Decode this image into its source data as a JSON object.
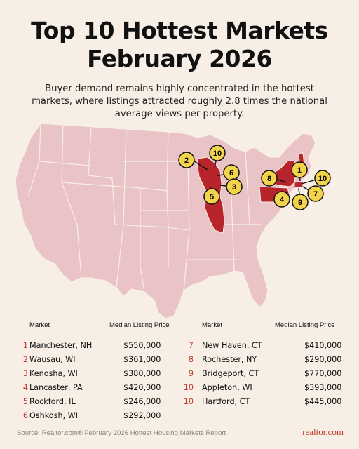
{
  "header": {
    "title_line1": "Top 10 Hottest Markets",
    "title_line2": "February 2026",
    "subtitle": "Buyer demand remains highly concentrated in the hottest markets, where listings attracted roughly 2.8 times the national average views per property."
  },
  "map": {
    "highlight_color": "#b8242c",
    "base_color": "#e9c3c5",
    "marker_color": "#f3d34a",
    "markers": [
      {
        "rank": "1"
      },
      {
        "rank": "2"
      },
      {
        "rank": "3"
      },
      {
        "rank": "4"
      },
      {
        "rank": "5"
      },
      {
        "rank": "6"
      },
      {
        "rank": "7"
      },
      {
        "rank": "8"
      },
      {
        "rank": "9"
      },
      {
        "rank": "10"
      },
      {
        "rank": "10"
      }
    ]
  },
  "table": {
    "header_market": "Market",
    "header_price": "Median Listing Price",
    "left": [
      {
        "rank": "1",
        "city": "Manchester, NH",
        "price": "$550,000"
      },
      {
        "rank": "2",
        "city": "Wausau, WI",
        "price": "$361,000"
      },
      {
        "rank": "3",
        "city": "Kenosha, WI",
        "price": "$380,000"
      },
      {
        "rank": "4",
        "city": "Lancaster, PA",
        "price": "$420,000"
      },
      {
        "rank": "5",
        "city": "Rockford, IL",
        "price": "$246,000"
      },
      {
        "rank": "6",
        "city": "Oshkosh, WI",
        "price": "$292,000"
      }
    ],
    "right": [
      {
        "rank": "7",
        "city": "New Haven, CT",
        "price": "$410,000"
      },
      {
        "rank": "8",
        "city": "Rochester, NY",
        "price": "$290,000"
      },
      {
        "rank": "9",
        "city": "Bridgeport, CT",
        "price": "$770,000"
      },
      {
        "rank": "10",
        "city": "Appleton, WI",
        "price": "$393,000"
      },
      {
        "rank": "10",
        "city": "Hartford, CT",
        "price": "$445,000"
      }
    ]
  },
  "footer": {
    "source": "Source: Realtor.com® February 2026 Hottest Housing Markets Report",
    "brand": "realtor.com"
  }
}
